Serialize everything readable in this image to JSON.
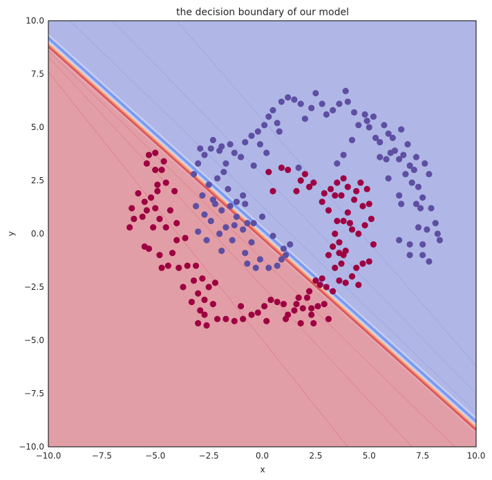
{
  "chart_data": {
    "type": "scatter",
    "title": "the decision boundary of our model",
    "xlabel": "x",
    "ylabel": "y",
    "xlim": [
      -10,
      10
    ],
    "ylim": [
      -10,
      10
    ],
    "xticks": [
      -10,
      -7.5,
      -5,
      -2.5,
      0,
      2.5,
      5,
      7.5,
      10
    ],
    "yticks": [
      -10,
      -7.5,
      -5,
      -2.5,
      0,
      2.5,
      5,
      7.5,
      10
    ],
    "xtick_labels": [
      "−10.0",
      "−7.5",
      "−5.0",
      "−2.5",
      "0.0",
      "2.5",
      "5.0",
      "7.5",
      "10.0"
    ],
    "ytick_labels": [
      "−10.0",
      "−7.5",
      "−5.0",
      "−2.5",
      "0.0",
      "2.5",
      "5.0",
      "7.5",
      "10.0"
    ],
    "grid": false,
    "decision_boundary": {
      "points": [
        [
          -10,
          9.0
        ],
        [
          10,
          -9.0
        ]
      ],
      "region_above_color": "#b0b7e6",
      "region_below_color": "#e29ea6"
    },
    "colors": {
      "class_upper": "#5e4fa2",
      "class_lower": "#9e0142",
      "boundary_blue": "#6f8ff0",
      "boundary_red": "#e8705a"
    },
    "series": [
      {
        "class": "upper",
        "points": [
          [
            -2.9,
            4.0
          ],
          [
            -2.7,
            3.7
          ],
          [
            -2.4,
            4.0
          ],
          [
            -2.0,
            3.9
          ],
          [
            -1.5,
            4.2
          ],
          [
            -1.7,
            3.3
          ],
          [
            -1.3,
            3.8
          ],
          [
            -1.0,
            3.6
          ],
          [
            -0.8,
            4.3
          ],
          [
            -0.5,
            4.6
          ],
          [
            -0.2,
            4.8
          ],
          [
            -0.1,
            4.2
          ],
          [
            0.1,
            5.1
          ],
          [
            0.3,
            5.5
          ],
          [
            0.5,
            5.8
          ],
          [
            0.7,
            5.2
          ],
          [
            0.9,
            6.2
          ],
          [
            1.2,
            6.4
          ],
          [
            1.5,
            6.3
          ],
          [
            1.8,
            6.1
          ],
          [
            2.0,
            5.4
          ],
          [
            2.3,
            5.9
          ],
          [
            2.5,
            6.6
          ],
          [
            2.8,
            6.1
          ],
          [
            3.0,
            5.6
          ],
          [
            3.3,
            5.8
          ],
          [
            3.6,
            6.1
          ],
          [
            3.9,
            6.7
          ],
          [
            4.0,
            6.2
          ],
          [
            4.3,
            5.7
          ],
          [
            4.5,
            5.1
          ],
          [
            4.8,
            5.6
          ],
          [
            5.0,
            5.0
          ],
          [
            5.2,
            5.5
          ],
          [
            5.3,
            4.5
          ],
          [
            5.5,
            4.3
          ],
          [
            5.7,
            5.1
          ],
          [
            5.9,
            4.7
          ],
          [
            6.1,
            4.5
          ],
          [
            6.2,
            3.9
          ],
          [
            6.4,
            3.5
          ],
          [
            6.6,
            3.7
          ],
          [
            6.5,
            4.9
          ],
          [
            6.8,
            4.2
          ],
          [
            6.9,
            3.2
          ],
          [
            7.1,
            3.0
          ],
          [
            7.0,
            2.4
          ],
          [
            7.3,
            2.2
          ],
          [
            7.5,
            1.7
          ],
          [
            7.2,
            1.4
          ],
          [
            7.6,
            3.3
          ],
          [
            7.8,
            2.8
          ],
          [
            7.9,
            1.2
          ],
          [
            8.1,
            0.5
          ],
          [
            8.2,
            0.0
          ],
          [
            8.3,
            -0.3
          ],
          [
            7.7,
            0.2
          ],
          [
            7.5,
            -0.5
          ],
          [
            7.3,
            0.3
          ],
          [
            6.9,
            -0.5
          ],
          [
            7.5,
            -1.0
          ],
          [
            7.8,
            -1.3
          ],
          [
            6.9,
            -1.0
          ],
          [
            6.4,
            -0.3
          ],
          [
            6.5,
            1.4
          ],
          [
            6.7,
            2.8
          ],
          [
            5.8,
            3.5
          ],
          [
            5.5,
            3.6
          ],
          [
            5.9,
            2.6
          ],
          [
            3.5,
            3.3
          ],
          [
            3.8,
            3.7
          ],
          [
            4.2,
            4.4
          ],
          [
            4.9,
            5.3
          ],
          [
            6.0,
            3.8
          ],
          [
            7.2,
            3.6
          ],
          [
            7.4,
            1.2
          ],
          [
            6.4,
            1.8
          ],
          [
            -3.0,
            3.3
          ],
          [
            -3.2,
            2.8
          ],
          [
            -2.5,
            2.3
          ],
          [
            -2.1,
            2.6
          ],
          [
            -1.8,
            2.9
          ],
          [
            -1.6,
            2.1
          ],
          [
            -2.3,
            1.6
          ],
          [
            -2.8,
            1.8
          ],
          [
            -3.1,
            1.3
          ],
          [
            -2.7,
            0.9
          ],
          [
            -2.4,
            0.6
          ],
          [
            -2.2,
            1.4
          ],
          [
            -1.9,
            1.1
          ],
          [
            -1.5,
            1.3
          ],
          [
            -1.2,
            1.5
          ],
          [
            -0.9,
            1.8
          ],
          [
            -1.2,
            0.8
          ],
          [
            -1.7,
            0.3
          ],
          [
            -2.0,
            0.0
          ],
          [
            -1.4,
            -0.3
          ],
          [
            -0.9,
            0.2
          ],
          [
            -0.4,
            0.5
          ],
          [
            0.0,
            0.8
          ],
          [
            -0.5,
            -0.4
          ],
          [
            -0.1,
            -1.2
          ],
          [
            0.3,
            -1.6
          ],
          [
            0.7,
            -1.5
          ],
          [
            -0.3,
            -1.6
          ],
          [
            1.0,
            -0.7
          ],
          [
            1.3,
            -0.5
          ],
          [
            0.9,
            -1.2
          ],
          [
            -0.7,
            -1.4
          ],
          [
            -2.6,
            -0.3
          ],
          [
            -3.0,
            0.1
          ],
          [
            -1.9,
            -0.8
          ],
          [
            -0.8,
            -0.9
          ],
          [
            -0.4,
            3.2
          ],
          [
            0.2,
            3.8
          ],
          [
            -2.3,
            4.4
          ],
          [
            1.7,
            3.1
          ],
          [
            0.8,
            4.8
          ],
          [
            -1.9,
            4.1
          ],
          [
            -0.8,
            1.4
          ],
          [
            -1.3,
            0.4
          ],
          [
            0.5,
            -0.1
          ],
          [
            -0.7,
            0.5
          ],
          [
            1.1,
            -1.0
          ]
        ]
      },
      {
        "class": "lower",
        "points": [
          [
            -5.3,
            3.7
          ],
          [
            -5.0,
            3.8
          ],
          [
            -5.4,
            3.3
          ],
          [
            -5.0,
            3.0
          ],
          [
            -4.7,
            3.0
          ],
          [
            -4.6,
            3.4
          ],
          [
            -4.5,
            2.4
          ],
          [
            -4.9,
            2.0
          ],
          [
            -5.2,
            1.7
          ],
          [
            -5.5,
            1.5
          ],
          [
            -5.8,
            1.9
          ],
          [
            -6.1,
            1.2
          ],
          [
            -6.0,
            0.7
          ],
          [
            -6.2,
            0.3
          ],
          [
            -5.4,
            1.1
          ],
          [
            -5.0,
            1.2
          ],
          [
            -4.8,
            0.7
          ],
          [
            -4.3,
            1.1
          ],
          [
            -4.0,
            0.5
          ],
          [
            -4.5,
            0.3
          ],
          [
            -5.1,
            0.3
          ],
          [
            -5.3,
            -0.7
          ],
          [
            -4.8,
            -1.0
          ],
          [
            -4.2,
            -0.9
          ],
          [
            -4.0,
            -0.3
          ],
          [
            -4.4,
            -1.5
          ],
          [
            -3.9,
            -1.6
          ],
          [
            -3.5,
            -1.5
          ],
          [
            -3.1,
            -1.5
          ],
          [
            -3.2,
            -2.2
          ],
          [
            -2.8,
            -2.1
          ],
          [
            -2.5,
            -2.5
          ],
          [
            -3.0,
            -2.8
          ],
          [
            -3.3,
            -3.2
          ],
          [
            -2.7,
            -3.1
          ],
          [
            -2.3,
            -3.3
          ],
          [
            -2.7,
            -3.8
          ],
          [
            -3.0,
            -4.2
          ],
          [
            -2.6,
            -4.3
          ],
          [
            -2.1,
            -4.0
          ],
          [
            -1.7,
            -4.0
          ],
          [
            -1.3,
            -4.1
          ],
          [
            -0.9,
            -4.0
          ],
          [
            -0.5,
            -3.8
          ],
          [
            -0.2,
            -3.7
          ],
          [
            0.1,
            -3.4
          ],
          [
            0.4,
            -3.1
          ],
          [
            0.7,
            -3.2
          ],
          [
            1.0,
            -3.3
          ],
          [
            1.2,
            -3.8
          ],
          [
            1.5,
            -3.6
          ],
          [
            1.7,
            -3.0
          ],
          [
            1.9,
            -3.5
          ],
          [
            2.1,
            -3.0
          ],
          [
            2.3,
            -3.5
          ],
          [
            2.6,
            -3.4
          ],
          [
            2.9,
            -3.3
          ],
          [
            3.1,
            -4.0
          ],
          [
            2.4,
            -4.2
          ],
          [
            1.8,
            -4.2
          ],
          [
            1.1,
            -4.0
          ],
          [
            2.2,
            -2.7
          ],
          [
            2.5,
            -2.2
          ],
          [
            2.8,
            -2.1
          ],
          [
            3.0,
            -2.5
          ],
          [
            3.3,
            -2.7
          ],
          [
            3.6,
            -2.2
          ],
          [
            3.9,
            -2.3
          ],
          [
            3.7,
            -1.4
          ],
          [
            3.8,
            -1.0
          ],
          [
            3.9,
            -0.8
          ],
          [
            3.6,
            -0.4
          ],
          [
            3.3,
            -0.6
          ],
          [
            3.1,
            -1.0
          ],
          [
            3.4,
            0.0
          ],
          [
            3.5,
            0.6
          ],
          [
            3.1,
            1.1
          ],
          [
            2.8,
            1.5
          ],
          [
            2.9,
            1.9
          ],
          [
            3.2,
            2.1
          ],
          [
            3.5,
            2.4
          ],
          [
            3.8,
            2.6
          ],
          [
            4.0,
            2.2
          ],
          [
            4.4,
            2.0
          ],
          [
            4.6,
            2.4
          ],
          [
            4.9,
            2.1
          ],
          [
            4.3,
            1.6
          ],
          [
            4.7,
            1.3
          ],
          [
            5.0,
            1.4
          ],
          [
            5.1,
            0.7
          ],
          [
            4.8,
            0.4
          ],
          [
            4.5,
            0.0
          ],
          [
            4.2,
            0.2
          ],
          [
            3.8,
            0.6
          ],
          [
            4.0,
            1.0
          ],
          [
            3.7,
            1.8
          ],
          [
            3.4,
            1.8
          ],
          [
            2.4,
            2.4
          ],
          [
            2.0,
            2.8
          ],
          [
            1.8,
            2.5
          ],
          [
            2.2,
            2.2
          ],
          [
            1.6,
            2.0
          ],
          [
            0.9,
            3.1
          ],
          [
            1.2,
            3.0
          ],
          [
            0.3,
            2.9
          ],
          [
            0.5,
            2.0
          ],
          [
            5.2,
            -0.5
          ],
          [
            5.0,
            -1.3
          ],
          [
            4.7,
            -1.4
          ],
          [
            4.4,
            -1.6
          ],
          [
            4.2,
            -2.0
          ],
          [
            4.5,
            -2.4
          ],
          [
            -3.6,
            -0.2
          ],
          [
            -4.7,
            -1.6
          ],
          [
            -5.5,
            -0.6
          ],
          [
            -4.1,
            2.0
          ],
          [
            -4.9,
            2.3
          ],
          [
            -5.6,
            0.8
          ],
          [
            -2.9,
            -3.6
          ],
          [
            -1.0,
            -3.4
          ],
          [
            0.2,
            -4.1
          ],
          [
            1.6,
            -3.3
          ],
          [
            2.3,
            -3.8
          ],
          [
            3.6,
            -0.9
          ],
          [
            4.1,
            0.5
          ],
          [
            3.4,
            -1.6
          ],
          [
            2.7,
            -2.4
          ],
          [
            -3.7,
            -2.5
          ],
          [
            -2.2,
            -2.3
          ]
        ]
      }
    ]
  }
}
